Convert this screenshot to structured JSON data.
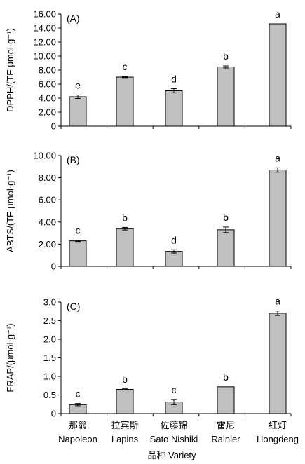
{
  "x_title": "品种 Variety",
  "categories": [
    {
      "zh": "那翁",
      "en": "Napoleon"
    },
    {
      "zh": "拉宾斯",
      "en": "Lapins"
    },
    {
      "zh": "佐藤锦",
      "en": "Sato Nishiki"
    },
    {
      "zh": "雷尼",
      "en": "Rainier"
    },
    {
      "zh": "红灯",
      "en": "Hongdeng"
    }
  ],
  "chart_data": [
    {
      "type": "bar",
      "panel_label": "(A)",
      "ylabel": "DPPH/(TE μmol·g⁻¹)",
      "ylim": [
        0,
        16
      ],
      "yticks": [
        "0",
        "2.00",
        "4.00",
        "6.00",
        "8.00",
        "10.00",
        "12.00",
        "14.00",
        "16.00"
      ],
      "values": [
        4.2,
        7.0,
        5.05,
        8.45,
        14.6
      ],
      "errors": [
        0.25,
        0.08,
        0.3,
        0.15,
        0.0
      ],
      "letters": [
        "e",
        "c",
        "d",
        "b",
        "a"
      ]
    },
    {
      "type": "bar",
      "panel_label": "(B)",
      "ylabel": "ABTS/(TE μmol·g⁻¹)",
      "ylim": [
        0,
        10
      ],
      "yticks": [
        "0",
        "2.00",
        "4.00",
        "6.00",
        "8.00",
        "10.00"
      ],
      "values": [
        2.3,
        3.4,
        1.35,
        3.3,
        8.7
      ],
      "errors": [
        0.06,
        0.12,
        0.15,
        0.25,
        0.2
      ],
      "letters": [
        "c",
        "b",
        "d",
        "b",
        "a"
      ]
    },
    {
      "type": "bar",
      "panel_label": "(C)",
      "ylabel": "FRAP/(μmol·g⁻¹)",
      "ylim": [
        0,
        3
      ],
      "yticks": [
        "0",
        "0.5",
        "1.0",
        "1.5",
        "2.0",
        "2.5",
        "3.0"
      ],
      "values": [
        0.24,
        0.65,
        0.31,
        0.72,
        2.7
      ],
      "errors": [
        0.03,
        0.015,
        0.07,
        0.0,
        0.06
      ],
      "letters": [
        "c",
        "b",
        "c",
        "b",
        "a"
      ]
    }
  ]
}
